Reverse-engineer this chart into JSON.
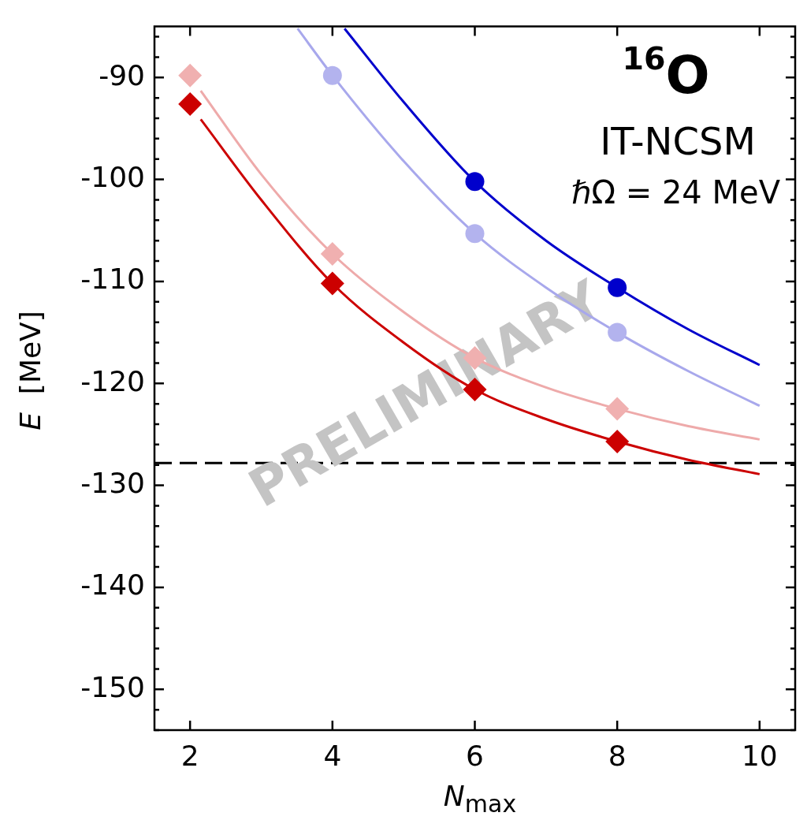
{
  "chart_data": {
    "type": "scatter",
    "xlabel": "N$_{max}$",
    "ylabel": "E  [MeV]",
    "annotations": [
      "$^{16}$O",
      "IT-NCSM",
      "ℏΩ = 24 MeV",
      "PRELIMINARY"
    ],
    "xlim": [
      1.5,
      10.5
    ],
    "xticks": [
      2,
      4,
      6,
      8,
      10
    ],
    "ylim": [
      -154,
      -85
    ],
    "yticks": [
      {
        "value": -154,
        "label": null
      },
      {
        "value": -152,
        "label": null
      },
      -150,
      {
        "value": -148,
        "label": null
      },
      {
        "value": -146,
        "label": null
      },
      {
        "value": -144,
        "label": null
      },
      {
        "value": -142,
        "label": null
      },
      -140,
      {
        "value": -138,
        "label": null
      },
      {
        "value": -136,
        "label": null
      },
      {
        "value": -134,
        "label": null
      },
      {
        "value": -132,
        "label": null
      },
      -130,
      {
        "value": -128,
        "label": null
      },
      {
        "value": -126,
        "label": null
      },
      {
        "value": -124,
        "label": null
      },
      {
        "value": -122,
        "label": null
      },
      -120,
      {
        "value": -118,
        "label": null
      },
      {
        "value": -116,
        "label": null
      },
      {
        "value": -114,
        "label": null
      },
      {
        "value": -112,
        "label": null
      },
      -110,
      {
        "value": -108,
        "label": null
      },
      {
        "value": -106,
        "label": null
      },
      {
        "value": -104,
        "label": null
      },
      {
        "value": -102,
        "label": null
      },
      -100,
      {
        "value": -98,
        "label": null
      },
      {
        "value": -96,
        "label": null
      },
      {
        "value": -94,
        "label": null
      },
      {
        "value": -92,
        "label": null
      },
      -90,
      {
        "value": -88,
        "label": null
      },
      {
        "value": -86,
        "label": null
      }
    ],
    "grid": false,
    "ref_lines": [
      {
        "axis": "y",
        "value": -127.8,
        "color": "#000000",
        "line_style": "dashed"
      }
    ],
    "series": [
      {
        "type": "line",
        "marker": "none",
        "color": "#0000cc",
        "x": [
          4.17,
          5,
          6,
          7,
          8,
          9,
          10
        ],
        "values": [
          -85.2,
          -92.4,
          -100.2,
          -106.0,
          -110.6,
          -114.7,
          -118.2
        ]
      },
      {
        "type": "line",
        "marker": "none",
        "color": "#a8a8ec",
        "x": [
          3.51,
          4,
          5,
          6,
          7,
          8,
          9,
          10
        ],
        "values": [
          -85.2,
          -89.8,
          -98.2,
          -105.3,
          -110.6,
          -115.0,
          -118.8,
          -122.2
        ]
      },
      {
        "type": "line",
        "marker": "none",
        "color": "#eeaaaa",
        "x": [
          2.15,
          3,
          4,
          5,
          6,
          7,
          8,
          9,
          10
        ],
        "values": [
          -91.3,
          -99.5,
          -107.3,
          -113.0,
          -117.5,
          -120.4,
          -122.5,
          -124.2,
          -125.5
        ]
      },
      {
        "type": "line",
        "marker": "none",
        "color": "#cc0000",
        "x": [
          2.15,
          3,
          4,
          5,
          6,
          7,
          8,
          9,
          10
        ],
        "values": [
          -94.1,
          -102.0,
          -110.2,
          -116.0,
          -120.6,
          -123.5,
          -125.7,
          -127.5,
          -128.9
        ]
      },
      {
        "type": "scatter",
        "marker": "circle",
        "color": "#0000cc",
        "x": [
          6,
          8
        ],
        "values": [
          -100.2,
          -110.6
        ]
      },
      {
        "type": "scatter",
        "marker": "circle",
        "color": "#b3b3ee",
        "x": [
          4,
          6,
          8
        ],
        "values": [
          -89.8,
          -105.3,
          -115.0
        ]
      },
      {
        "type": "scatter",
        "marker": "diamond",
        "color": "#f0b0b0",
        "x": [
          2,
          4,
          6,
          8
        ],
        "values": [
          -89.8,
          -107.3,
          -117.5,
          -122.5
        ]
      },
      {
        "type": "scatter",
        "marker": "diamond",
        "color": "#cc0000",
        "x": [
          2,
          4,
          6,
          8
        ],
        "values": [
          -92.6,
          -110.2,
          -120.6,
          -125.7
        ]
      }
    ]
  }
}
